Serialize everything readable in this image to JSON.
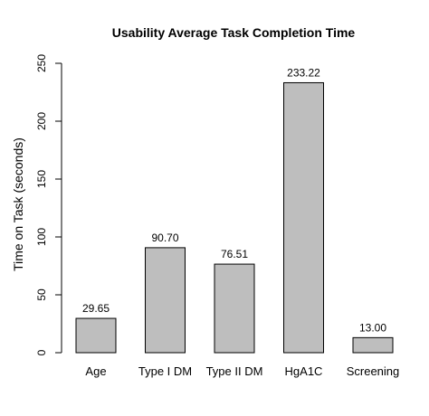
{
  "chart_data": {
    "type": "bar",
    "title": "Usability Average Task Completion Time",
    "xlabel": "",
    "ylabel": "Time on Task (seconds)",
    "categories": [
      "Age",
      "Type I DM",
      "Type II DM",
      "HgA1C",
      "Screening"
    ],
    "values": [
      29.65,
      90.7,
      76.51,
      233.22,
      13.0
    ],
    "value_labels": [
      "29.65",
      "90.70",
      "76.51",
      "233.22",
      "13.00"
    ],
    "ylim": [
      0,
      250
    ],
    "yticks": [
      0,
      50,
      100,
      150,
      200,
      250
    ],
    "grid": false,
    "legend": "none",
    "bar_color": "#bebebe"
  }
}
